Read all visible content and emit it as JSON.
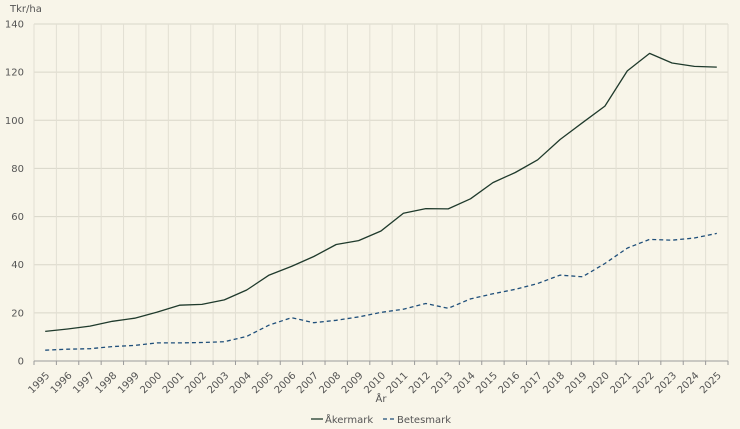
{
  "chart_data": {
    "type": "line",
    "ylabel": "Tkr/ha",
    "xlabel": "År",
    "ylim": [
      0,
      140
    ],
    "yticks": [
      0,
      20,
      40,
      60,
      80,
      100,
      120,
      140
    ],
    "grid": "vertical and horizontal",
    "legend_position": "bottom",
    "categories": [
      "1995",
      "1996",
      "1997",
      "1998",
      "1999",
      "2000",
      "2001",
      "2002",
      "2003",
      "2004",
      "2005",
      "2006",
      "2007",
      "2008",
      "2009",
      "2010",
      "2011",
      "2012",
      "2013",
      "2014",
      "2015",
      "2016",
      "2017",
      "2018",
      "2019",
      "2020",
      "2021",
      "2022",
      "2023",
      "2024",
      "2025"
    ],
    "series": [
      {
        "name": "Åkermark",
        "color": "#1f3a2c",
        "style": "solid",
        "values": [
          12.3,
          13.3,
          14.5,
          16.5,
          17.8,
          20.3,
          23.2,
          23.5,
          25.4,
          29.5,
          35.7,
          39.3,
          43.4,
          48.4,
          50.0,
          54.0,
          61.4,
          63.3,
          63.2,
          67.4,
          74.1,
          78.3,
          83.6,
          92.0,
          99.0,
          105.9,
          120.5,
          127.8,
          123.8,
          122.4,
          122.1
        ]
      },
      {
        "name": "Betesmark",
        "color": "#1f4f7a",
        "style": "dashed",
        "values": [
          4.5,
          4.9,
          5.1,
          6.0,
          6.5,
          7.5,
          7.5,
          7.7,
          8.0,
          10.2,
          14.9,
          18.0,
          15.9,
          16.9,
          18.3,
          20.2,
          21.5,
          23.9,
          21.9,
          25.8,
          27.9,
          29.8,
          32.2,
          35.7,
          35.0,
          40.5,
          46.9,
          50.5,
          50.2,
          51.1,
          53.0
        ]
      }
    ]
  }
}
